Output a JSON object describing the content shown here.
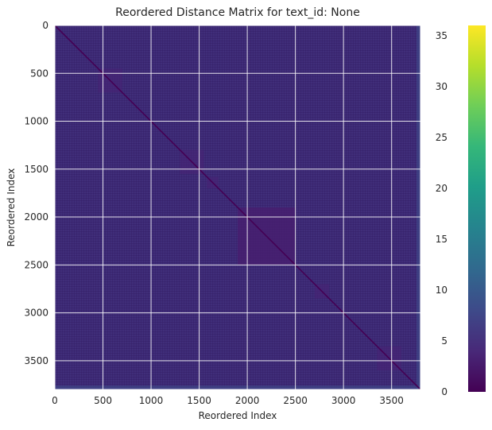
{
  "chart_data": {
    "type": "heatmap",
    "title": "Reordered Distance Matrix for text_id: None",
    "xlabel": "Reordered Index",
    "ylabel": "Reordered Index",
    "xlim": [
      0,
      3800
    ],
    "ylim": [
      3800,
      0
    ],
    "x_ticks": [
      "0",
      "500",
      "1000",
      "1500",
      "2000",
      "2500",
      "3000",
      "3500"
    ],
    "y_ticks": [
      "0",
      "500",
      "1000",
      "1500",
      "2000",
      "2500",
      "3000",
      "3500"
    ],
    "colorbar": {
      "colormap": "viridis",
      "range": [
        0,
        36
      ],
      "ticks": [
        "0",
        "5",
        "10",
        "15",
        "20",
        "25",
        "30",
        "35"
      ]
    },
    "matrix_size": 3800,
    "background_value": 5,
    "diagonal_value": 0,
    "dense_block": {
      "start": 1900,
      "end": 2500,
      "value": 3
    },
    "grid": true
  }
}
